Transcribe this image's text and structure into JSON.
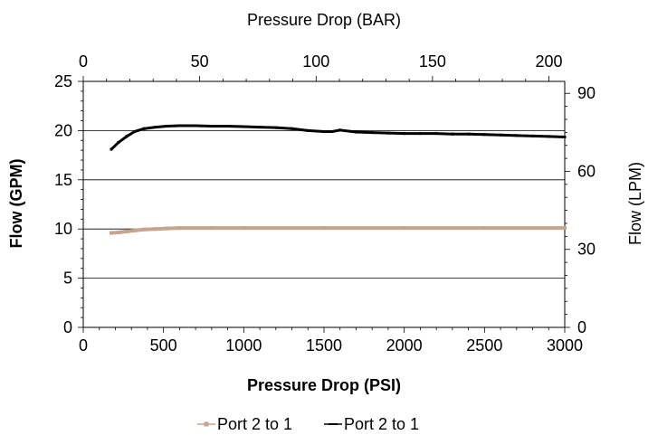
{
  "chart_data": {
    "type": "line",
    "title": "",
    "xlabel": "Pressure Drop (PSI)",
    "ylabel": "Flow (GPM)",
    "x2label": "Pressure Drop (BAR)",
    "y2label": "Flow (LPM)",
    "xlim": [
      0,
      3000
    ],
    "ylim": [
      0,
      25
    ],
    "x2lim": [
      0,
      206.8
    ],
    "y2lim": [
      0,
      94.6
    ],
    "xticks": [
      0,
      500,
      1000,
      1500,
      2000,
      2500,
      3000
    ],
    "xtick_labels": [
      "0",
      "500",
      "1000",
      "1500",
      "2000",
      "2500",
      "3000"
    ],
    "yticks": [
      0,
      5,
      10,
      15,
      20,
      25
    ],
    "ytick_labels": [
      "0",
      "5",
      "10",
      "15",
      "20",
      "25"
    ],
    "x2ticks": [
      0,
      50,
      100,
      150,
      200
    ],
    "x2tick_labels": [
      "0",
      "50",
      "100",
      "150",
      "200"
    ],
    "y2ticks": [
      0,
      30,
      60,
      90
    ],
    "y2tick_labels": [
      "0",
      "30",
      "60",
      "90"
    ],
    "grid": "horizontal major gridlines",
    "legend": "bottom-center",
    "series": [
      {
        "name": "Port 2 to 1",
        "color": "#c7a48e",
        "marker": "square",
        "x": [
          175,
          220,
          270,
          320,
          380,
          450,
          520,
          600,
          800,
          1000,
          1500,
          2000,
          2500,
          3000
        ],
        "y": [
          9.6,
          9.65,
          9.75,
          9.85,
          9.95,
          10.0,
          10.05,
          10.1,
          10.1,
          10.1,
          10.1,
          10.1,
          10.1,
          10.1
        ]
      },
      {
        "name": "Port 2 to 1",
        "color": "#000000",
        "marker": "dash",
        "x": [
          175,
          220,
          270,
          320,
          380,
          450,
          520,
          600,
          700,
          800,
          900,
          1000,
          1100,
          1200,
          1300,
          1400,
          1500,
          1550,
          1600,
          1700,
          1800,
          1900,
          2000,
          2100,
          2200,
          2300,
          2400,
          2500,
          2600,
          2700,
          2800,
          2900,
          3000
        ],
        "y": [
          18.1,
          18.8,
          19.4,
          19.9,
          20.2,
          20.35,
          20.45,
          20.5,
          20.5,
          20.45,
          20.45,
          20.4,
          20.35,
          20.3,
          20.2,
          20.0,
          19.9,
          19.9,
          20.05,
          19.85,
          19.8,
          19.75,
          19.7,
          19.7,
          19.7,
          19.65,
          19.65,
          19.6,
          19.55,
          19.5,
          19.45,
          19.4,
          19.35
        ]
      }
    ]
  }
}
